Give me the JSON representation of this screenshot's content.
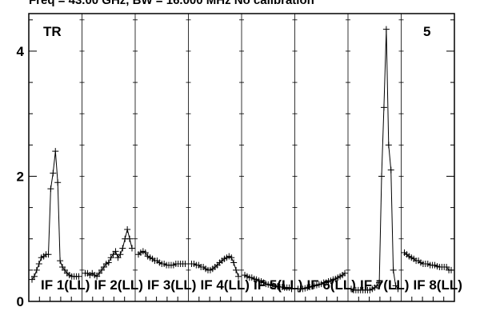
{
  "chart_data": {
    "type": "line",
    "title": "Freq = 43.00 GHz, BW = 16.000 MHz  No calibration",
    "corner_left": "TR",
    "corner_right": "5",
    "ylim": [
      0,
      4.6
    ],
    "y_ticks": [
      0,
      2,
      4
    ],
    "y_tick_labels": [
      "0",
      "2",
      "4"
    ],
    "marker": "plus",
    "grid": false,
    "panels": [
      {
        "label": "IF 1(LL)",
        "values": [
          0.35,
          0.4,
          0.5,
          0.6,
          0.7,
          0.72,
          0.75,
          0.75,
          1.8,
          2.05,
          2.4,
          1.9,
          0.65,
          0.55,
          0.5,
          0.45,
          0.42,
          0.4,
          0.4,
          0.4,
          0.4
        ]
      },
      {
        "label": "IF 2(LL)",
        "values": [
          0.45,
          0.45,
          0.42,
          0.45,
          0.42,
          0.4,
          0.45,
          0.5,
          0.55,
          0.6,
          0.62,
          0.7,
          0.75,
          0.8,
          0.7,
          0.75,
          0.85,
          1.0,
          1.15,
          1.0,
          0.85
        ]
      },
      {
        "label": "IF 3(LL)",
        "values": [
          0.75,
          0.78,
          0.8,
          0.78,
          0.72,
          0.7,
          0.68,
          0.65,
          0.65,
          0.62,
          0.6,
          0.6,
          0.58,
          0.58,
          0.58,
          0.58,
          0.6,
          0.6,
          0.6,
          0.6,
          0.6
        ]
      },
      {
        "label": "IF 4(LL)",
        "values": [
          0.6,
          0.6,
          0.58,
          0.58,
          0.55,
          0.55,
          0.52,
          0.5,
          0.5,
          0.52,
          0.55,
          0.58,
          0.62,
          0.65,
          0.68,
          0.7,
          0.72,
          0.7,
          0.62,
          0.5,
          0.4
        ]
      },
      {
        "label": "IF 5(LL)",
        "values": [
          0.42,
          0.4,
          0.38,
          0.38,
          0.36,
          0.35,
          0.33,
          0.32,
          0.3,
          0.28,
          0.27,
          0.26,
          0.25,
          0.24,
          0.24,
          0.23,
          0.23,
          0.22,
          0.22,
          0.22,
          0.2
        ]
      },
      {
        "label": "IF 6(LL)",
        "values": [
          0.2,
          0.2,
          0.2,
          0.21,
          0.22,
          0.23,
          0.24,
          0.25,
          0.26,
          0.27,
          0.28,
          0.3,
          0.3,
          0.32,
          0.33,
          0.35,
          0.36,
          0.38,
          0.4,
          0.42,
          0.45
        ]
      },
      {
        "label": "IF 7(LL)",
        "values": [
          0.2,
          0.18,
          0.18,
          0.18,
          0.18,
          0.18,
          0.18,
          0.18,
          0.18,
          0.2,
          0.22,
          0.25,
          0.3,
          2.0,
          3.1,
          4.35,
          2.5,
          2.1,
          0.5,
          0.25,
          0.2
        ]
      },
      {
        "label": "IF 8(LL)",
        "values": [
          0.78,
          0.75,
          0.72,
          0.7,
          0.68,
          0.65,
          0.65,
          0.62,
          0.6,
          0.6,
          0.6,
          0.58,
          0.58,
          0.58,
          0.56,
          0.55,
          0.55,
          0.55,
          0.55,
          0.5,
          0.5
        ]
      }
    ]
  }
}
